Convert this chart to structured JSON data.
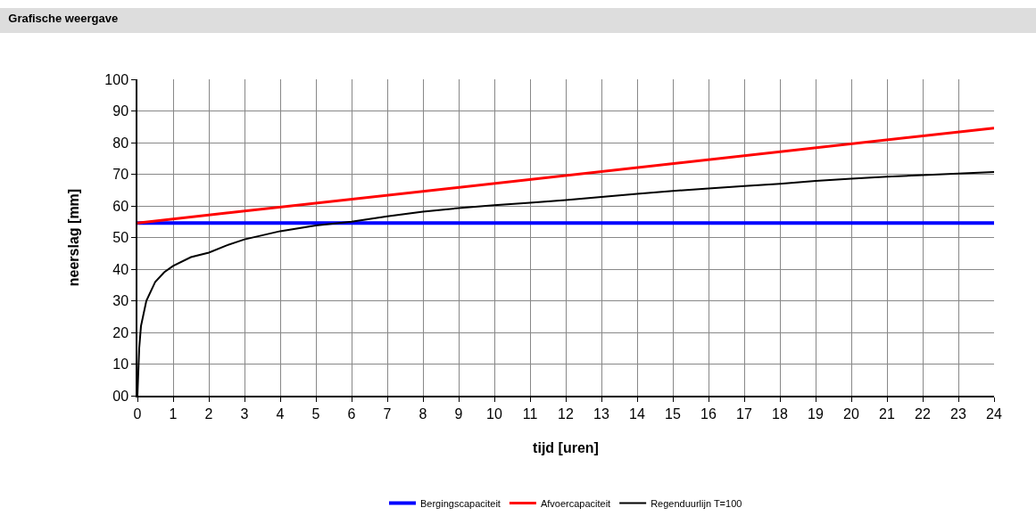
{
  "chart_data": {
    "type": "line",
    "title": "Grafische weergave",
    "xlabel": "tijd [uren]",
    "ylabel": "neerslag [mm]",
    "xlim": [
      0,
      24
    ],
    "xticks": [
      0,
      1,
      2,
      3,
      4,
      5,
      6,
      7,
      8,
      9,
      10,
      11,
      12,
      13,
      14,
      15,
      16,
      17,
      18,
      19,
      20,
      21,
      22,
      23,
      24
    ],
    "ylim": [
      0,
      100
    ],
    "yticks": [
      {
        "value": 0,
        "label": "00"
      },
      10,
      20,
      30,
      40,
      50,
      60,
      70,
      80,
      90,
      100
    ],
    "grid": true,
    "legend": "bottom",
    "line_style": "solid",
    "marker": "none",
    "series": [
      {
        "name": "Bergingscapaciteit",
        "color": "#0000ff",
        "x": [
          0,
          24
        ],
        "values": [
          54.6,
          54.6
        ]
      },
      {
        "name": "Afvoercapaciteit",
        "color": "#ff0000",
        "x": [
          0,
          24
        ],
        "values": [
          54.6,
          84.6
        ]
      },
      {
        "name": "Regenduurlijn T=100",
        "color": "#000000",
        "x": [
          0,
          0.05,
          0.1,
          0.25,
          0.5,
          0.75,
          1,
          1.5,
          2,
          2.5,
          3,
          4,
          5,
          6,
          7,
          8,
          9,
          10,
          11,
          12,
          13,
          14,
          15,
          16,
          17,
          18,
          19,
          20,
          21,
          22,
          23,
          24
        ],
        "values": [
          0,
          15,
          22,
          30,
          36,
          39,
          41,
          43.8,
          45.2,
          47.5,
          49.4,
          52,
          53.8,
          55,
          56.7,
          58.2,
          59.3,
          60.2,
          61,
          61.8,
          62.8,
          63.8,
          64.7,
          65.5,
          66.3,
          67,
          67.9,
          68.6,
          69.2,
          69.7,
          70.2,
          70.7
        ]
      }
    ]
  }
}
